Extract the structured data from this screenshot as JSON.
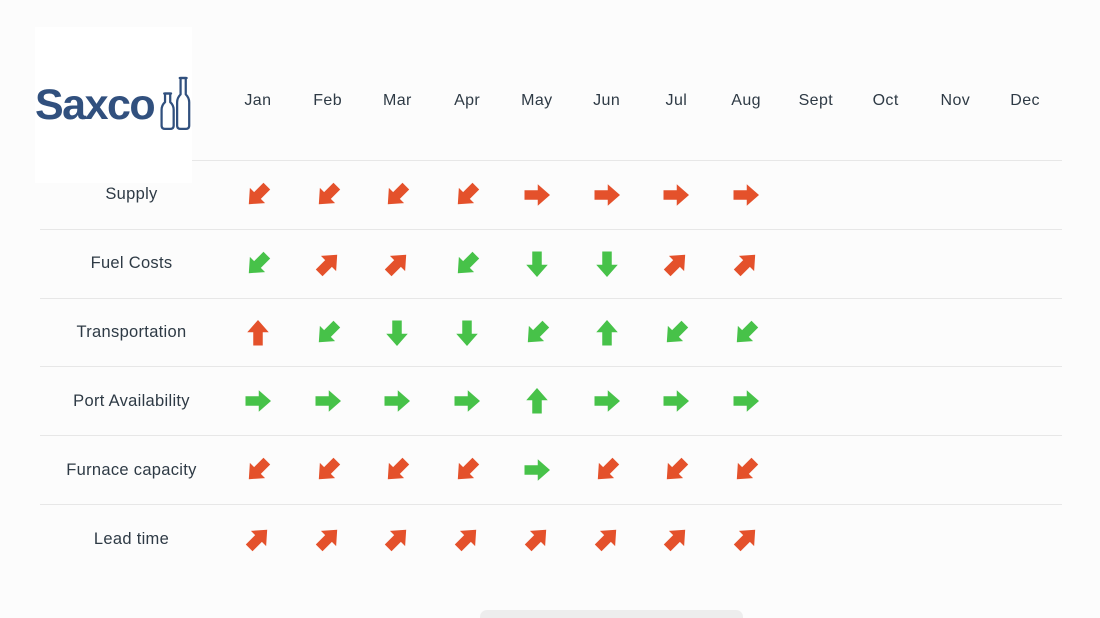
{
  "page": {
    "background": "#FCFCFC"
  },
  "logo": {
    "text": "Saxco",
    "color": "#31507E",
    "icon": "two-bottles-icon"
  },
  "colors": {
    "arrow_red": "#E4512B",
    "arrow_green": "#47C249",
    "text": "#2E3A45",
    "separator": "#E7E7E7",
    "logo_background": "#FFFFFF",
    "bottom_bar": "#EDEDED"
  },
  "chart_data": {
    "type": "table",
    "title": "",
    "columns": [
      "Jan",
      "Feb",
      "Mar",
      "Apr",
      "May",
      "Jun",
      "Jul",
      "Aug",
      "Sept",
      "Oct",
      "Nov",
      "Dec"
    ],
    "arrow_colors": {
      "red": "#E4512B",
      "green": "#47C249"
    },
    "rows": [
      {
        "label": "Supply",
        "cells": [
          {
            "month": "Jan",
            "direction": "down-left",
            "color": "red"
          },
          {
            "month": "Feb",
            "direction": "down-left",
            "color": "red"
          },
          {
            "month": "Mar",
            "direction": "down-left",
            "color": "red"
          },
          {
            "month": "Apr",
            "direction": "down-left",
            "color": "red"
          },
          {
            "month": "May",
            "direction": "right",
            "color": "red"
          },
          {
            "month": "Jun",
            "direction": "right",
            "color": "red"
          },
          {
            "month": "Jul",
            "direction": "right",
            "color": "red"
          },
          {
            "month": "Aug",
            "direction": "right",
            "color": "red"
          }
        ]
      },
      {
        "label": "Fuel Costs",
        "cells": [
          {
            "month": "Jan",
            "direction": "down-left",
            "color": "green"
          },
          {
            "month": "Feb",
            "direction": "up-right",
            "color": "red"
          },
          {
            "month": "Mar",
            "direction": "up-right",
            "color": "red"
          },
          {
            "month": "Apr",
            "direction": "down-left",
            "color": "green"
          },
          {
            "month": "May",
            "direction": "down",
            "color": "green"
          },
          {
            "month": "Jun",
            "direction": "down",
            "color": "green"
          },
          {
            "month": "Jul",
            "direction": "up-right",
            "color": "red"
          },
          {
            "month": "Aug",
            "direction": "up-right",
            "color": "red"
          }
        ]
      },
      {
        "label": "Transportation",
        "cells": [
          {
            "month": "Jan",
            "direction": "up",
            "color": "red"
          },
          {
            "month": "Feb",
            "direction": "down-left",
            "color": "green"
          },
          {
            "month": "Mar",
            "direction": "down",
            "color": "green"
          },
          {
            "month": "Apr",
            "direction": "down",
            "color": "green"
          },
          {
            "month": "May",
            "direction": "down-left",
            "color": "green"
          },
          {
            "month": "Jun",
            "direction": "up",
            "color": "green"
          },
          {
            "month": "Jul",
            "direction": "down-left",
            "color": "green"
          },
          {
            "month": "Aug",
            "direction": "down-left",
            "color": "green"
          }
        ]
      },
      {
        "label": "Port Availability",
        "cells": [
          {
            "month": "Jan",
            "direction": "right",
            "color": "green"
          },
          {
            "month": "Feb",
            "direction": "right",
            "color": "green"
          },
          {
            "month": "Mar",
            "direction": "right",
            "color": "green"
          },
          {
            "month": "Apr",
            "direction": "right",
            "color": "green"
          },
          {
            "month": "May",
            "direction": "up",
            "color": "green"
          },
          {
            "month": "Jun",
            "direction": "right",
            "color": "green"
          },
          {
            "month": "Jul",
            "direction": "right",
            "color": "green"
          },
          {
            "month": "Aug",
            "direction": "right",
            "color": "green"
          }
        ]
      },
      {
        "label": "Furnace capacity",
        "cells": [
          {
            "month": "Jan",
            "direction": "down-left",
            "color": "red"
          },
          {
            "month": "Feb",
            "direction": "down-left",
            "color": "red"
          },
          {
            "month": "Mar",
            "direction": "down-left",
            "color": "red"
          },
          {
            "month": "Apr",
            "direction": "down-left",
            "color": "red"
          },
          {
            "month": "May",
            "direction": "right",
            "color": "green"
          },
          {
            "month": "Jun",
            "direction": "down-left",
            "color": "red"
          },
          {
            "month": "Jul",
            "direction": "down-left",
            "color": "red"
          },
          {
            "month": "Aug",
            "direction": "down-left",
            "color": "red"
          }
        ]
      },
      {
        "label": "Lead time",
        "cells": [
          {
            "month": "Jan",
            "direction": "up-right",
            "color": "red"
          },
          {
            "month": "Feb",
            "direction": "up-right",
            "color": "red"
          },
          {
            "month": "Mar",
            "direction": "up-right",
            "color": "red"
          },
          {
            "month": "Apr",
            "direction": "up-right",
            "color": "red"
          },
          {
            "month": "May",
            "direction": "up-right",
            "color": "red"
          },
          {
            "month": "Jun",
            "direction": "up-right",
            "color": "red"
          },
          {
            "month": "Jul",
            "direction": "up-right",
            "color": "red"
          },
          {
            "month": "Aug",
            "direction": "up-right",
            "color": "red"
          }
        ]
      }
    ]
  }
}
